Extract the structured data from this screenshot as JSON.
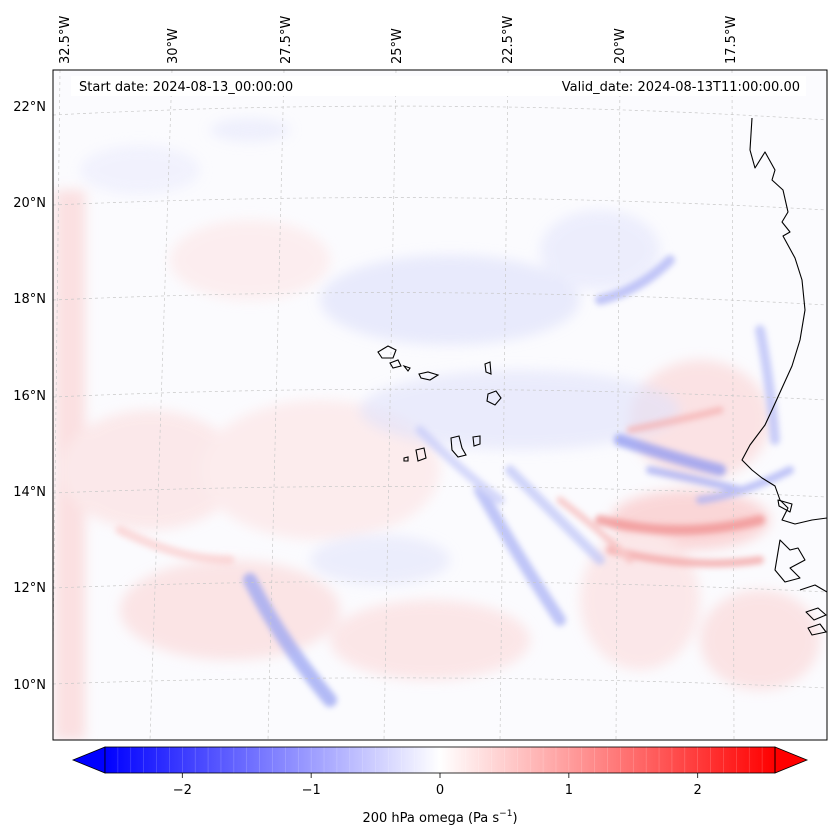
{
  "map": {
    "annotations": {
      "start_date": "Start date: 2024-08-13_00:00:00",
      "valid_date": "Valid_date: 2024-08-13T11:00:00.00"
    },
    "lon_ticks": [
      "32.5°W",
      "30°W",
      "27.5°W",
      "25°W",
      "22.5°W",
      "20°W",
      "17.5°W"
    ],
    "lat_ticks": [
      "22°N",
      "20°N",
      "18°N",
      "16°N",
      "14°N",
      "12°N",
      "10°N"
    ],
    "field": "200 hPa omega",
    "colormap": "bwr",
    "gridlines": true,
    "coastlines": true
  },
  "colorbar": {
    "label_main": "200 hPa omega (Pa s",
    "label_exp": "−1",
    "label_close": ")",
    "ticks": [
      "−2",
      "−1",
      "0",
      "1",
      "2"
    ],
    "tick_values": [
      -2,
      -1,
      0,
      1,
      2
    ],
    "range": [
      -2.6,
      2.6
    ],
    "extend": "both",
    "colors": {
      "min": "#0000ff",
      "mid": "#ffffff",
      "max": "#ff0000"
    }
  }
}
